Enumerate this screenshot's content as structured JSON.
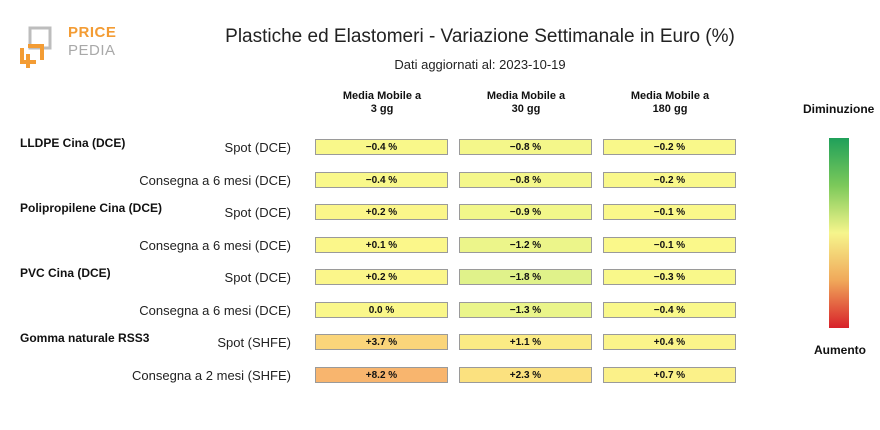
{
  "logo": {
    "word1": "PRICE",
    "word2": "PEDIA",
    "colors": {
      "orange": "#f39c34",
      "gray": "#9a9a9a"
    }
  },
  "header": {
    "title": "Plastiche ed Elastomeri - Variazione Settimanale in Euro (%)",
    "subtitle": "Dati aggiornati al: 2023-10-19"
  },
  "chart_data": {
    "type": "table",
    "columns": [
      {
        "line1": "Media Mobile a",
        "line2": "3 gg"
      },
      {
        "line1": "Media Mobile a",
        "line2": "30 gg"
      },
      {
        "line1": "Media Mobile a",
        "line2": "180 gg"
      }
    ],
    "groups": [
      "LLDPE Cina (DCE)",
      "Polipropilene Cina (DCE)",
      "PVC Cina (DCE)",
      "Gomma naturale RSS3"
    ],
    "rows": [
      {
        "group": "LLDPE Cina (DCE)",
        "label": "Spot (DCE)",
        "values": [
          "-0.4 %",
          "-0.8 %",
          "-0.2 %"
        ],
        "colors": [
          "#f9f88a",
          "#f4f78a",
          "#f9f88a"
        ]
      },
      {
        "group": "LLDPE Cina (DCE)",
        "label": "Consegna a 6 mesi (DCE)",
        "values": [
          "-0.4 %",
          "-0.8 %",
          "-0.2 %"
        ],
        "colors": [
          "#f9f88a",
          "#f4f78a",
          "#f9f88a"
        ]
      },
      {
        "group": "Polipropilene Cina (DCE)",
        "label": "Spot (DCE)",
        "values": [
          "+0.2 %",
          "-0.9 %",
          "-0.1 %"
        ],
        "colors": [
          "#fbf68a",
          "#f2f78a",
          "#faf88a"
        ]
      },
      {
        "group": "Polipropilene Cina (DCE)",
        "label": "Consegna a 6 mesi (DCE)",
        "values": [
          "+0.1 %",
          "-1.2 %",
          "-0.1 %"
        ],
        "colors": [
          "#fbf78a",
          "#ecf58a",
          "#faf88a"
        ]
      },
      {
        "group": "PVC Cina (DCE)",
        "label": "Spot (DCE)",
        "values": [
          "+0.2 %",
          "-1.8 %",
          "-0.3 %"
        ],
        "colors": [
          "#fbf68a",
          "#e0f28a",
          "#f9f88a"
        ]
      },
      {
        "group": "PVC Cina (DCE)",
        "label": "Consegna a 6 mesi (DCE)",
        "values": [
          "0.0 %",
          "-1.3 %",
          "-0.4 %"
        ],
        "colors": [
          "#faf78a",
          "#eaf58a",
          "#f9f88a"
        ]
      },
      {
        "group": "Gomma naturale RSS3",
        "label": "Spot (SHFE)",
        "values": [
          "+3.7 %",
          "+1.1 %",
          "+0.4 %"
        ],
        "colors": [
          "#fad57a",
          "#fbeb84",
          "#fbf48a"
        ]
      },
      {
        "group": "Gomma naturale RSS3",
        "label": "Consegna a 2 mesi (SHFE)",
        "values": [
          "+8.2 %",
          "+2.3 %",
          "+0.7 %"
        ],
        "colors": [
          "#f8b56e",
          "#fbe17f",
          "#fbf189"
        ]
      }
    ]
  },
  "legend": {
    "top_label": "Diminuzione",
    "bottom_label": "Aumento",
    "colors": [
      "#1fa05a",
      "#f6f58c",
      "#d8212a"
    ]
  }
}
